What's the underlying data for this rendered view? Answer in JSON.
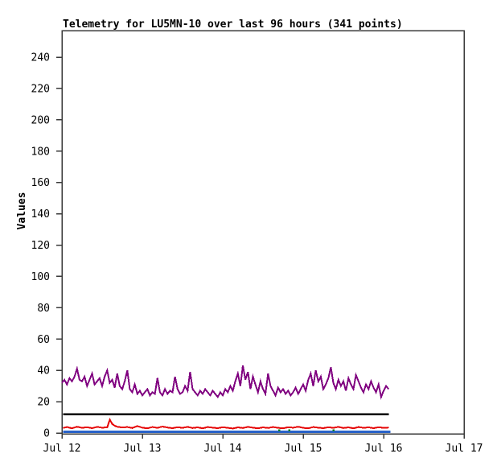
{
  "window": {
    "background": "#ffffff"
  },
  "chart_data": {
    "type": "line",
    "title": "Telemetry for LU5MN-10 over last 96 hours (341 points)",
    "ylabel": "Values",
    "xlabel": "",
    "grid": false,
    "legend": "none",
    "axis_color": "#383838",
    "text_color": "#000000",
    "x_axis": {
      "unit": "date",
      "tick_hours": [
        0,
        24,
        48,
        72,
        96,
        120
      ],
      "tick_labels": [
        "Jul 12",
        "Jul 13",
        "Jul 14",
        "Jul 15",
        "Jul 16",
        "Jul 17"
      ],
      "range_hours": [
        0,
        120
      ]
    },
    "y_axis": {
      "ticks": [
        0,
        20,
        40,
        60,
        80,
        100,
        120,
        140,
        160,
        180,
        200,
        220,
        240
      ],
      "range": [
        0,
        257
      ]
    },
    "series": [
      {
        "name": "telemetry-channel-purple",
        "color": "#800080",
        "width": 2,
        "segments": [
          [
            [
              0.0,
              32
            ],
            [
              0.75,
              34
            ],
            [
              1.5,
              31
            ],
            [
              2.25,
              35
            ],
            [
              3.0,
              33
            ],
            [
              3.75,
              36
            ],
            [
              4.5,
              41
            ],
            [
              5.25,
              34
            ],
            [
              6.0,
              33
            ],
            [
              6.75,
              36
            ],
            [
              7.5,
              30
            ],
            [
              8.25,
              34
            ],
            [
              9.0,
              38
            ],
            [
              9.75,
              31
            ],
            [
              10.5,
              33
            ],
            [
              11.25,
              35
            ],
            [
              12.0,
              30
            ],
            [
              12.75,
              36
            ],
            [
              13.5,
              40
            ],
            [
              14.25,
              32
            ],
            [
              15.0,
              34
            ],
            [
              15.75,
              29
            ],
            [
              16.5,
              38
            ],
            [
              17.25,
              30
            ],
            [
              18.0,
              28
            ],
            [
              18.75,
              33
            ],
            [
              19.5,
              40
            ],
            [
              20.25,
              28
            ],
            [
              21.0,
              26
            ],
            [
              21.75,
              31
            ],
            [
              22.5,
              25
            ],
            [
              23.25,
              27
            ],
            [
              24.0,
              24
            ],
            [
              24.75,
              26
            ],
            [
              25.5,
              28
            ],
            [
              26.25,
              24
            ],
            [
              27.0,
              26
            ],
            [
              27.75,
              25
            ],
            [
              28.5,
              35
            ],
            [
              29.25,
              26
            ],
            [
              30.0,
              24
            ],
            [
              30.75,
              28
            ],
            [
              31.5,
              25
            ],
            [
              32.25,
              27
            ],
            [
              33.0,
              26
            ],
            [
              33.75,
              36
            ],
            [
              34.5,
              28
            ],
            [
              35.25,
              25
            ],
            [
              36.0,
              26
            ],
            [
              36.75,
              30
            ],
            [
              37.5,
              27
            ],
            [
              38.25,
              39
            ],
            [
              39.0,
              28
            ],
            [
              39.75,
              26
            ],
            [
              40.5,
              24
            ],
            [
              41.25,
              27
            ],
            [
              42.0,
              25
            ],
            [
              42.75,
              28
            ],
            [
              43.5,
              26
            ],
            [
              44.25,
              24
            ],
            [
              45.0,
              27
            ],
            [
              45.75,
              25
            ],
            [
              46.5,
              23
            ],
            [
              47.25,
              26
            ],
            [
              48.0,
              24
            ],
            [
              48.75,
              28
            ],
            [
              49.5,
              26
            ],
            [
              50.25,
              30
            ],
            [
              51.0,
              27
            ],
            [
              51.75,
              33
            ],
            [
              52.5,
              38
            ],
            [
              53.25,
              30
            ],
            [
              54.0,
              43
            ],
            [
              54.75,
              34
            ],
            [
              55.5,
              39
            ],
            [
              56.25,
              28
            ],
            [
              57.0,
              36
            ],
            [
              57.75,
              31
            ],
            [
              58.5,
              26
            ],
            [
              59.25,
              33
            ],
            [
              60.0,
              28
            ],
            [
              60.75,
              25
            ],
            [
              61.5,
              38
            ],
            [
              62.25,
              30
            ],
            [
              63.0,
              27
            ],
            [
              63.75,
              24
            ],
            [
              64.5,
              29
            ],
            [
              65.25,
              26
            ],
            [
              66.0,
              28
            ],
            [
              66.75,
              25
            ],
            [
              67.5,
              27
            ],
            [
              68.25,
              24
            ],
            [
              69.0,
              26
            ],
            [
              69.75,
              29
            ],
            [
              70.5,
              25
            ],
            [
              71.25,
              28
            ],
            [
              72.0,
              31
            ],
            [
              72.75,
              27
            ],
            [
              73.5,
              34
            ],
            [
              74.25,
              38
            ],
            [
              75.0,
              30
            ],
            [
              75.75,
              40
            ],
            [
              76.5,
              33
            ],
            [
              77.25,
              36
            ],
            [
              78.0,
              28
            ],
            [
              78.75,
              31
            ],
            [
              79.5,
              35
            ],
            [
              80.25,
              42
            ],
            [
              81.0,
              32
            ],
            [
              81.75,
              28
            ],
            [
              82.5,
              34
            ],
            [
              83.25,
              30
            ],
            [
              84.0,
              33
            ],
            [
              84.75,
              27
            ],
            [
              85.5,
              35
            ],
            [
              86.25,
              31
            ],
            [
              87.0,
              28
            ],
            [
              87.75,
              37
            ],
            [
              88.5,
              33
            ],
            [
              89.25,
              29
            ],
            [
              90.0,
              26
            ],
            [
              90.75,
              31
            ],
            [
              91.5,
              28
            ],
            [
              92.25,
              33
            ],
            [
              93.0,
              29
            ],
            [
              93.75,
              26
            ],
            [
              94.5,
              31
            ],
            [
              95.25,
              23
            ],
            [
              96.0,
              27
            ],
            [
              96.75,
              30
            ],
            [
              97.5,
              28
            ]
          ]
        ]
      },
      {
        "name": "telemetry-channel-black-threshold",
        "color": "#000000",
        "width": 2.5,
        "segments": [
          [
            [
              0.3,
              12
            ],
            [
              97.5,
              12
            ]
          ]
        ]
      },
      {
        "name": "telemetry-channel-red",
        "color": "#e60000",
        "width": 2,
        "segments": [
          [
            [
              0.3,
              3.2
            ],
            [
              1.5,
              3.8
            ],
            [
              3.0,
              3.0
            ],
            [
              4.5,
              4.0
            ],
            [
              6.0,
              3.3
            ],
            [
              7.5,
              3.7
            ],
            [
              9.0,
              3.1
            ],
            [
              10.5,
              3.9
            ],
            [
              12.0,
              3.4
            ],
            [
              13.5,
              3.6
            ],
            [
              14.3,
              8.5
            ],
            [
              15.0,
              5.8
            ],
            [
              15.8,
              4.6
            ],
            [
              16.5,
              4.0
            ],
            [
              18.0,
              3.5
            ],
            [
              19.5,
              3.8
            ],
            [
              21.0,
              3.2
            ],
            [
              22.5,
              4.4
            ],
            [
              24.0,
              3.4
            ],
            [
              25.5,
              3.0
            ],
            [
              27.0,
              3.8
            ],
            [
              28.5,
              3.3
            ],
            [
              30.0,
              4.1
            ],
            [
              31.5,
              3.5
            ],
            [
              33.0,
              3.1
            ],
            [
              34.5,
              3.7
            ],
            [
              36.0,
              3.3
            ],
            [
              37.5,
              3.9
            ],
            [
              39.0,
              3.2
            ],
            [
              40.5,
              3.6
            ],
            [
              42.0,
              3.0
            ],
            [
              43.5,
              3.8
            ],
            [
              45.0,
              3.4
            ],
            [
              46.5,
              3.1
            ],
            [
              48.0,
              3.7
            ],
            [
              49.5,
              3.3
            ],
            [
              51.0,
              2.9
            ],
            [
              52.5,
              3.6
            ],
            [
              54.0,
              3.2
            ],
            [
              55.5,
              3.9
            ],
            [
              57.0,
              3.4
            ],
            [
              58.5,
              3.0
            ],
            [
              60.0,
              3.6
            ],
            [
              61.5,
              3.2
            ],
            [
              63.0,
              3.8
            ],
            [
              64.5,
              3.3
            ],
            [
              66.0,
              3.0
            ],
            [
              67.5,
              3.7
            ],
            [
              69.0,
              3.4
            ],
            [
              70.5,
              4.0
            ],
            [
              72.0,
              3.3
            ],
            [
              73.5,
              3.0
            ],
            [
              75.0,
              3.8
            ],
            [
              76.5,
              3.4
            ],
            [
              78.0,
              3.1
            ],
            [
              79.5,
              3.7
            ],
            [
              81.0,
              3.3
            ],
            [
              82.5,
              3.9
            ],
            [
              84.0,
              3.2
            ],
            [
              85.5,
              3.6
            ],
            [
              87.0,
              3.0
            ],
            [
              88.5,
              3.8
            ],
            [
              90.0,
              3.3
            ],
            [
              91.5,
              3.6
            ],
            [
              93.0,
              3.1
            ],
            [
              94.5,
              3.7
            ],
            [
              96.0,
              3.3
            ],
            [
              97.5,
              3.5
            ]
          ]
        ]
      },
      {
        "name": "telemetry-channel-blue",
        "color": "#2862c8",
        "width": 3,
        "segments": [
          [
            [
              0.3,
              0.8
            ],
            [
              98.0,
              0.8
            ]
          ]
        ]
      },
      {
        "name": "telemetry-channel-green",
        "color": "#008000",
        "width": 2,
        "segments": [
          [
            [
              64.6,
              1.7
            ],
            [
              65.2,
              1.7
            ]
          ],
          [
            [
              67.6,
              1.7
            ],
            [
              68.2,
              1.7
            ]
          ],
          [
            [
              80.7,
              1.7
            ],
            [
              81.3,
              1.7
            ]
          ]
        ]
      }
    ]
  }
}
